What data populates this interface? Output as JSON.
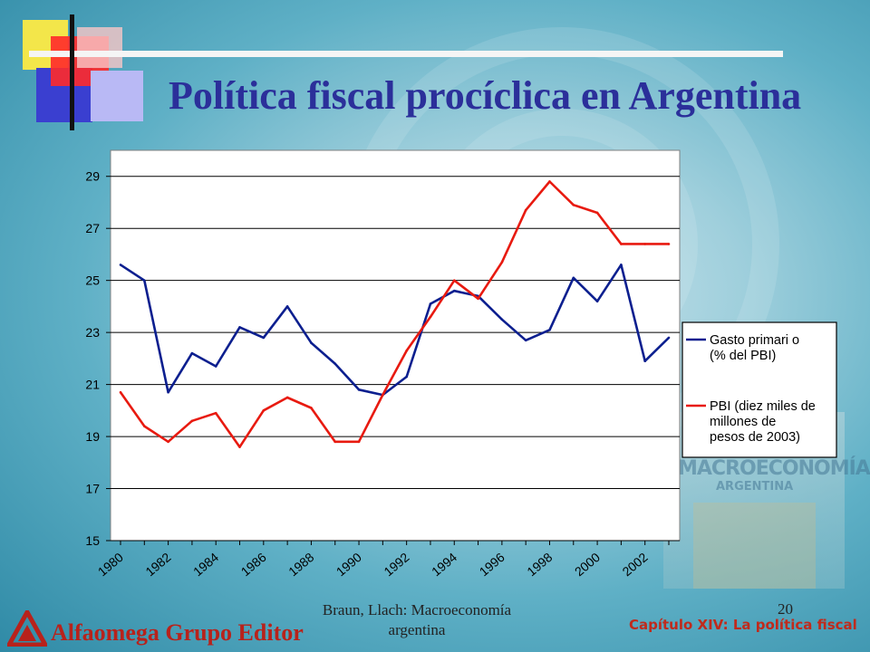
{
  "slide": {
    "title": "Política fiscal procíclica en Argentina",
    "footer_center": "Braun, Llach: Macroeconomía argentina",
    "page_number": "20",
    "chapter": "Capítulo XIV: La política fiscal",
    "publisher": "Alfaomega Grupo Editor",
    "book_cover_title": "MACROECONOMÍA",
    "book_cover_subtitle": "ARGENTINA"
  },
  "colors": {
    "title": "#2b2f9a",
    "gasto": "#0c1f8f",
    "pbi": "#e81a10",
    "chapter": "#c02a1c"
  },
  "chart_data": {
    "type": "line",
    "x": [
      1980,
      1981,
      1982,
      1983,
      1984,
      1985,
      1986,
      1987,
      1988,
      1989,
      1990,
      1991,
      1992,
      1993,
      1994,
      1995,
      1996,
      1997,
      1998,
      1999,
      2000,
      2001,
      2002,
      2003
    ],
    "x_tick_labels": [
      "1980",
      "1982",
      "1984",
      "1986",
      "1988",
      "1990",
      "1992",
      "1994",
      "1996",
      "1998",
      "2000",
      "2002"
    ],
    "y_ticks": [
      15,
      17,
      19,
      21,
      23,
      25,
      27,
      29
    ],
    "ylim": [
      15,
      30
    ],
    "grid": "horizontal",
    "legend_position": "right",
    "series": [
      {
        "name": "Gasto primario (% del PBI)",
        "legend_lines": [
          "Gasto primari o",
          "(% del PBI)"
        ],
        "color": "#0c1f8f",
        "values": [
          25.6,
          25.0,
          20.7,
          22.2,
          21.7,
          23.2,
          22.8,
          24.0,
          22.6,
          21.8,
          20.8,
          20.6,
          21.3,
          24.1,
          24.6,
          24.4,
          23.5,
          22.7,
          23.1,
          25.1,
          24.2,
          25.6,
          21.9,
          22.8
        ]
      },
      {
        "name": "PBI (diez miles de millones de pesos de 2003)",
        "legend_lines": [
          "PBI (diez miles de",
          "millones de",
          "pesos de 2003)"
        ],
        "color": "#e81a10",
        "values": [
          20.7,
          19.4,
          18.8,
          19.6,
          19.9,
          18.6,
          20.0,
          20.5,
          20.1,
          18.8,
          18.8,
          20.6,
          22.3,
          23.6,
          25.0,
          24.3,
          25.7,
          27.7,
          28.8,
          27.9,
          27.6,
          26.4,
          26.4,
          26.4
        ]
      }
    ]
  }
}
